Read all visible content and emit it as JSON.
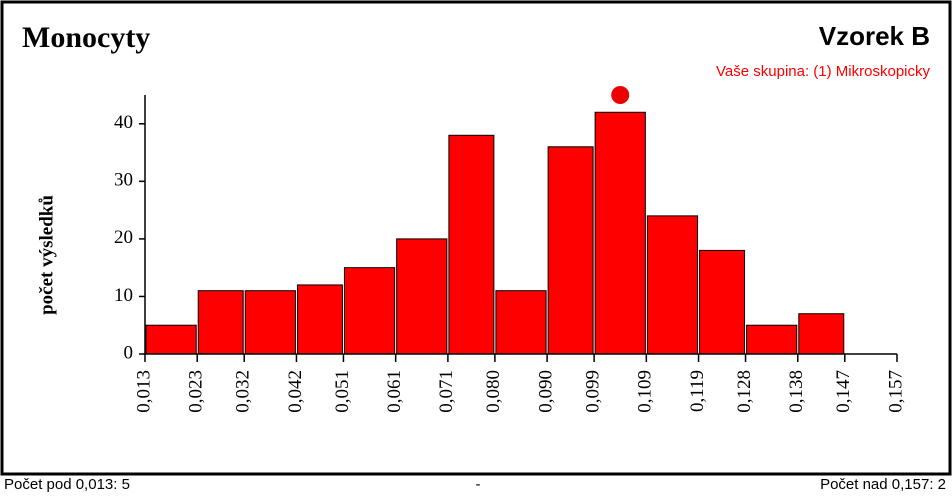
{
  "chart_data": {
    "type": "histogram",
    "title": "Monocyty",
    "subtitle": "Vzorek B",
    "annotation": "Vaše skupina: (1) Mikroskopicky",
    "marker": {
      "x": 0.104,
      "y": 45,
      "color": "#ee0000"
    },
    "ylabel": "počet výsledků",
    "bins": [
      0.013,
      0.023,
      0.032,
      0.042,
      0.051,
      0.061,
      0.071,
      0.08,
      0.09,
      0.099,
      0.109,
      0.119,
      0.128,
      0.138,
      0.147,
      0.157
    ],
    "values": [
      5,
      11,
      11,
      12,
      15,
      20,
      38,
      11,
      36,
      42,
      24,
      18,
      5,
      7,
      0
    ],
    "color": "#ff0000",
    "xlim": [
      0.013,
      0.157
    ],
    "xticks": [
      {
        "value": 0.013,
        "label": "0,013"
      },
      {
        "value": 0.023,
        "label": "0,023"
      },
      {
        "value": 0.032,
        "label": "0,032"
      },
      {
        "value": 0.042,
        "label": "0,042"
      },
      {
        "value": 0.051,
        "label": "0,051"
      },
      {
        "value": 0.061,
        "label": "0,061"
      },
      {
        "value": 0.071,
        "label": "0,071"
      },
      {
        "value": 0.08,
        "label": "0,080"
      },
      {
        "value": 0.09,
        "label": "0,090"
      },
      {
        "value": 0.099,
        "label": "0,099"
      },
      {
        "value": 0.109,
        "label": "0,109"
      },
      {
        "value": 0.119,
        "label": "0,119"
      },
      {
        "value": 0.128,
        "label": "0,128"
      },
      {
        "value": 0.138,
        "label": "0,138"
      },
      {
        "value": 0.147,
        "label": "0,147"
      },
      {
        "value": 0.157,
        "label": "0,157"
      }
    ],
    "ylim": [
      0,
      45
    ],
    "yticks": [
      0,
      10,
      20,
      30,
      40
    ],
    "footer": {
      "left": "Počet pod 0,013: 5",
      "center": "-",
      "right": "Počet nad 0,157: 2"
    }
  }
}
